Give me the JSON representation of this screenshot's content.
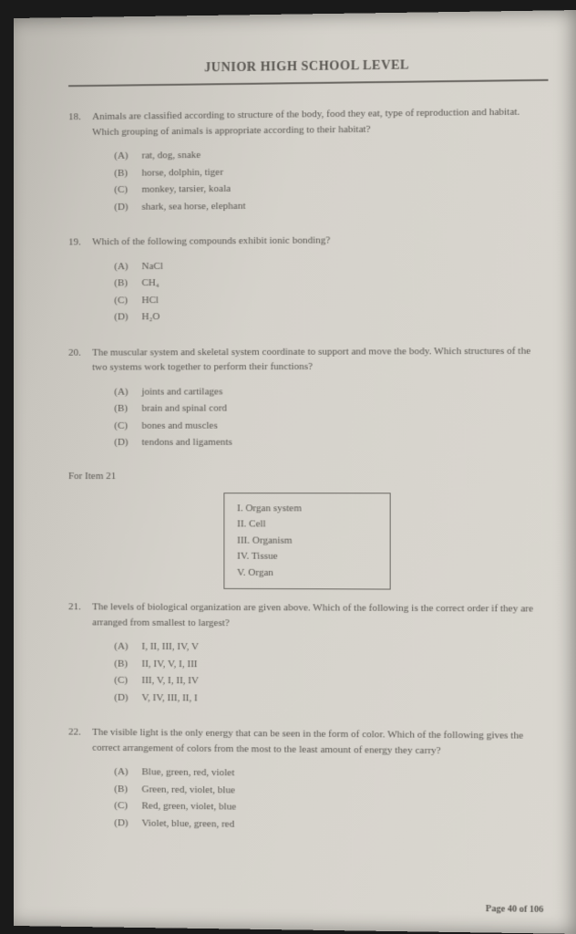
{
  "header": "JUNIOR HIGH SCHOOL LEVEL",
  "questions": [
    {
      "num": "18.",
      "text": "Animals are classified according to structure of the body, food they eat, type of reproduction and habitat. Which grouping of animals is appropriate according to their habitat?",
      "options": [
        {
          "label": "(A)",
          "text": "rat, dog, snake"
        },
        {
          "label": "(B)",
          "text": "horse, dolphin, tiger"
        },
        {
          "label": "(C)",
          "text": "monkey, tarsier, koala"
        },
        {
          "label": "(D)",
          "text": "shark, sea horse, elephant"
        }
      ]
    },
    {
      "num": "19.",
      "text": "Which of the following compounds exhibit ionic bonding?",
      "options": [
        {
          "label": "(A)",
          "text": "NaCl"
        },
        {
          "label": "(B)",
          "text": "CH₄"
        },
        {
          "label": "(C)",
          "text": "HCl"
        },
        {
          "label": "(D)",
          "text": "H₂O"
        }
      ]
    },
    {
      "num": "20.",
      "text": "The muscular system and skeletal system coordinate to support and move the body. Which structures of the two systems work together to perform their functions?",
      "options": [
        {
          "label": "(A)",
          "text": "joints and cartilages"
        },
        {
          "label": "(B)",
          "text": "brain and spinal cord"
        },
        {
          "label": "(C)",
          "text": "bones and muscles"
        },
        {
          "label": "(D)",
          "text": "tendons and ligaments"
        }
      ]
    }
  ],
  "forItem": "For Item 21",
  "box": [
    "I.   Organ system",
    "II.  Cell",
    "III. Organism",
    "IV. Tissue",
    "V.  Organ"
  ],
  "questions2": [
    {
      "num": "21.",
      "text": "The levels of biological organization are given above. Which of the following is the correct order if they are arranged from smallest to largest?",
      "options": [
        {
          "label": "(A)",
          "text": "I, II, III, IV, V"
        },
        {
          "label": "(B)",
          "text": "II, IV, V, I, III"
        },
        {
          "label": "(C)",
          "text": "III, V, I, II, IV"
        },
        {
          "label": "(D)",
          "text": "V, IV, III, II, I"
        }
      ]
    },
    {
      "num": "22.",
      "text": "The visible light is the only energy that can be seen in the form of color. Which of the following gives the correct arrangement of colors from the most to the least amount of energy they carry?",
      "options": [
        {
          "label": "(A)",
          "text": "Blue, green, red, violet"
        },
        {
          "label": "(B)",
          "text": "Green, red, violet, blue"
        },
        {
          "label": "(C)",
          "text": "Red, green, violet, blue"
        },
        {
          "label": "(D)",
          "text": "Violet, blue, green, red"
        }
      ]
    }
  ],
  "footer": "Page 40 of 106"
}
